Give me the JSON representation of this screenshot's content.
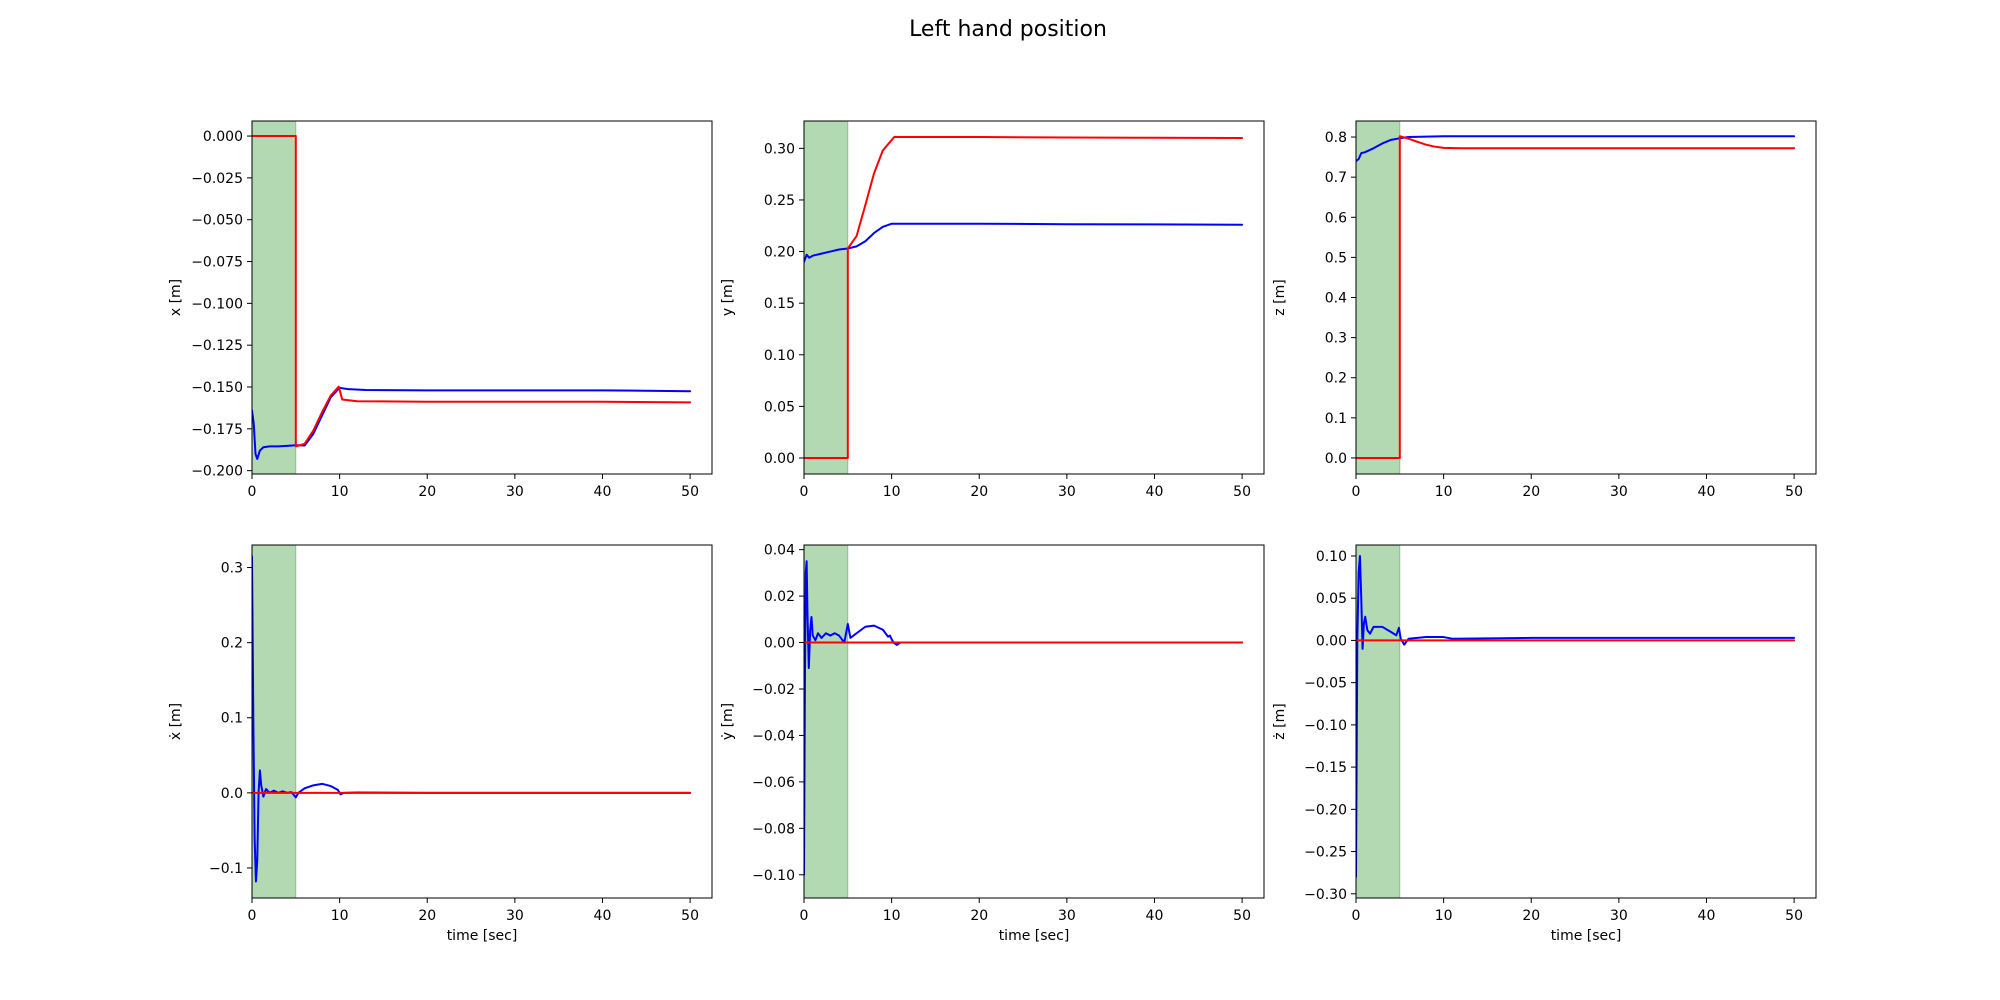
{
  "figure": {
    "title": "Left hand position",
    "colors": {
      "measured": "#0000ff",
      "reference": "#ff0000",
      "phase": "#008000"
    }
  },
  "chart_data": [
    {
      "type": "line",
      "ylabel": "x [m]",
      "xlabel": "",
      "xlim": [
        0,
        52.5
      ],
      "ylim": [
        -0.202,
        0.009
      ],
      "xticks": [
        0,
        10,
        20,
        30,
        40,
        50
      ],
      "xtick_labels": [
        "0",
        "10",
        "20",
        "30",
        "40",
        "50"
      ],
      "yticks": [
        0.0,
        -0.025,
        -0.05,
        -0.075,
        -0.1,
        -0.125,
        -0.15,
        -0.175,
        -0.2
      ],
      "ytick_labels": [
        "0.000",
        "−0.025",
        "−0.050",
        "−0.075",
        "−0.100",
        "−0.125",
        "−0.150",
        "−0.175",
        "−0.200"
      ],
      "shaded_region": {
        "x_start": 0,
        "x_end": 5,
        "color": "#008000",
        "alpha": 0.3
      },
      "series": [
        {
          "color": "#0000ff",
          "points": [
            [
              0,
              -0.164
            ],
            [
              0.2,
              -0.172
            ],
            [
              0.4,
              -0.19
            ],
            [
              0.6,
              -0.193
            ],
            [
              0.9,
              -0.188
            ],
            [
              1.3,
              -0.186
            ],
            [
              2,
              -0.1855
            ],
            [
              3,
              -0.1855
            ],
            [
              4,
              -0.1852
            ],
            [
              5,
              -0.1848
            ],
            [
              6,
              -0.185
            ],
            [
              7,
              -0.178
            ],
            [
              8,
              -0.167
            ],
            [
              9,
              -0.156
            ],
            [
              10,
              -0.1505
            ],
            [
              11,
              -0.1513
            ],
            [
              13,
              -0.1518
            ],
            [
              20,
              -0.152
            ],
            [
              30,
              -0.152
            ],
            [
              40,
              -0.152
            ],
            [
              50,
              -0.1525
            ]
          ]
        },
        {
          "color": "#ff0000",
          "points": [
            [
              0,
              0
            ],
            [
              5,
              0
            ],
            [
              5,
              -0.1855
            ],
            [
              6,
              -0.184
            ],
            [
              7,
              -0.176
            ],
            [
              8,
              -0.165
            ],
            [
              9,
              -0.155
            ],
            [
              9.9,
              -0.1498
            ],
            [
              10.3,
              -0.1575
            ],
            [
              12,
              -0.1585
            ],
            [
              20,
              -0.1588
            ],
            [
              30,
              -0.1588
            ],
            [
              40,
              -0.1588
            ],
            [
              50,
              -0.1592
            ]
          ]
        }
      ]
    },
    {
      "type": "line",
      "ylabel": "y [m]",
      "xlabel": "",
      "xlim": [
        0,
        52.5
      ],
      "ylim": [
        -0.0155,
        0.3265
      ],
      "xticks": [
        0,
        10,
        20,
        30,
        40,
        50
      ],
      "xtick_labels": [
        "0",
        "10",
        "20",
        "30",
        "40",
        "50"
      ],
      "yticks": [
        0.0,
        0.05,
        0.1,
        0.15,
        0.2,
        0.25,
        0.3
      ],
      "ytick_labels": [
        "0.00",
        "0.05",
        "0.10",
        "0.15",
        "0.20",
        "0.25",
        "0.30"
      ],
      "shaded_region": {
        "x_start": 0,
        "x_end": 5,
        "color": "#008000",
        "alpha": 0.3
      },
      "series": [
        {
          "color": "#0000ff",
          "points": [
            [
              0,
              0.19
            ],
            [
              0.3,
              0.197
            ],
            [
              0.6,
              0.194
            ],
            [
              1,
              0.196
            ],
            [
              2,
              0.198
            ],
            [
              3,
              0.2
            ],
            [
              4,
              0.202
            ],
            [
              5,
              0.203
            ],
            [
              6,
              0.205
            ],
            [
              7,
              0.21
            ],
            [
              8,
              0.218
            ],
            [
              9,
              0.224
            ],
            [
              10,
              0.227
            ],
            [
              12,
              0.227
            ],
            [
              20,
              0.227
            ],
            [
              30,
              0.2265
            ],
            [
              40,
              0.2263
            ],
            [
              50,
              0.226
            ]
          ]
        },
        {
          "color": "#ff0000",
          "points": [
            [
              0,
              0
            ],
            [
              5,
              0
            ],
            [
              5,
              0.203
            ],
            [
              6,
              0.215
            ],
            [
              7,
              0.245
            ],
            [
              8,
              0.276
            ],
            [
              9,
              0.298
            ],
            [
              10,
              0.308
            ],
            [
              10.3,
              0.311
            ],
            [
              20,
              0.311
            ],
            [
              30,
              0.3105
            ],
            [
              40,
              0.3103
            ],
            [
              50,
              0.31
            ]
          ]
        }
      ]
    },
    {
      "type": "line",
      "ylabel": "z [m]",
      "xlabel": "",
      "xlim": [
        0,
        52.5
      ],
      "ylim": [
        -0.04,
        0.84
      ],
      "xticks": [
        0,
        10,
        20,
        30,
        40,
        50
      ],
      "xtick_labels": [
        "0",
        "10",
        "20",
        "30",
        "40",
        "50"
      ],
      "yticks": [
        0.0,
        0.1,
        0.2,
        0.3,
        0.4,
        0.5,
        0.6,
        0.7,
        0.8
      ],
      "ytick_labels": [
        "0.0",
        "0.1",
        "0.2",
        "0.3",
        "0.4",
        "0.5",
        "0.6",
        "0.7",
        "0.8"
      ],
      "shaded_region": {
        "x_start": 0,
        "x_end": 5,
        "color": "#008000",
        "alpha": 0.3
      },
      "series": [
        {
          "color": "#0000ff",
          "points": [
            [
              0,
              0.74
            ],
            [
              0.3,
              0.745
            ],
            [
              0.6,
              0.76
            ],
            [
              1,
              0.762
            ],
            [
              2,
              0.772
            ],
            [
              3,
              0.784
            ],
            [
              4,
              0.793
            ],
            [
              5,
              0.797
            ],
            [
              6,
              0.8
            ],
            [
              8,
              0.801
            ],
            [
              10,
              0.802
            ],
            [
              20,
              0.802
            ],
            [
              30,
              0.802
            ],
            [
              40,
              0.802
            ],
            [
              50,
              0.802
            ]
          ]
        },
        {
          "color": "#ff0000",
          "points": [
            [
              0,
              0
            ],
            [
              5,
              0
            ],
            [
              5,
              0.802
            ],
            [
              6,
              0.796
            ],
            [
              7,
              0.788
            ],
            [
              8,
              0.781
            ],
            [
              9,
              0.776
            ],
            [
              10,
              0.773
            ],
            [
              12,
              0.772
            ],
            [
              20,
              0.772
            ],
            [
              30,
              0.772
            ],
            [
              40,
              0.772
            ],
            [
              50,
              0.772
            ]
          ]
        }
      ]
    },
    {
      "type": "line",
      "ylabel": "ẋ [m]",
      "xlabel": "time [sec]",
      "xlim": [
        0,
        52.5
      ],
      "ylim": [
        -0.14,
        0.33
      ],
      "xticks": [
        0,
        10,
        20,
        30,
        40,
        50
      ],
      "xtick_labels": [
        "0",
        "10",
        "20",
        "30",
        "40",
        "50"
      ],
      "yticks": [
        -0.1,
        0.0,
        0.1,
        0.2,
        0.3
      ],
      "ytick_labels": [
        "−0.1",
        "0.0",
        "0.1",
        "0.2",
        "0.3"
      ],
      "shaded_region": {
        "x_start": 0,
        "x_end": 5,
        "color": "#008000",
        "alpha": 0.3
      },
      "series": [
        {
          "color": "#0000ff",
          "points": [
            [
              0,
              0.315
            ],
            [
              0.15,
              0.1
            ],
            [
              0.3,
              -0.06
            ],
            [
              0.45,
              -0.118
            ],
            [
              0.6,
              -0.09
            ],
            [
              0.75,
              0.0
            ],
            [
              0.9,
              0.03
            ],
            [
              1.05,
              0.01
            ],
            [
              1.3,
              -0.005
            ],
            [
              1.6,
              0.005
            ],
            [
              2,
              0.0
            ],
            [
              2.5,
              0.003
            ],
            [
              3,
              0.0
            ],
            [
              3.5,
              0.002
            ],
            [
              4,
              0.0
            ],
            [
              4.5,
              0.001
            ],
            [
              5,
              -0.006
            ],
            [
              5.3,
              0.0
            ],
            [
              6,
              0.006
            ],
            [
              7,
              0.01
            ],
            [
              8,
              0.012
            ],
            [
              9,
              0.009
            ],
            [
              9.8,
              0.004
            ],
            [
              10.1,
              -0.002
            ],
            [
              10.5,
              0.0
            ],
            [
              12,
              0.0005
            ],
            [
              20,
              0.0
            ],
            [
              30,
              0.0
            ],
            [
              40,
              0.0
            ],
            [
              50,
              0.0
            ]
          ]
        },
        {
          "color": "#ff0000",
          "points": [
            [
              0,
              0
            ],
            [
              5,
              0
            ],
            [
              50,
              0
            ]
          ]
        }
      ]
    },
    {
      "type": "line",
      "ylabel": "ẏ [m]",
      "xlabel": "time [sec]",
      "xlim": [
        0,
        52.5
      ],
      "ylim": [
        -0.11,
        0.042
      ],
      "xticks": [
        0,
        10,
        20,
        30,
        40,
        50
      ],
      "xtick_labels": [
        "0",
        "10",
        "20",
        "30",
        "40",
        "50"
      ],
      "yticks": [
        -0.1,
        -0.08,
        -0.06,
        -0.04,
        -0.02,
        0.0,
        0.02,
        0.04
      ],
      "ytick_labels": [
        "−0.10",
        "−0.08",
        "−0.06",
        "−0.04",
        "−0.02",
        "0.00",
        "0.02",
        "0.04"
      ],
      "shaded_region": {
        "x_start": 0,
        "x_end": 5,
        "color": "#008000",
        "alpha": 0.3
      },
      "series": [
        {
          "color": "#0000ff",
          "points": [
            [
              0,
              -0.1
            ],
            [
              0.1,
              -0.02
            ],
            [
              0.2,
              0.03
            ],
            [
              0.3,
              0.035
            ],
            [
              0.4,
              0.012
            ],
            [
              0.55,
              -0.011
            ],
            [
              0.7,
              0.005
            ],
            [
              0.85,
              0.011
            ],
            [
              1,
              0.003
            ],
            [
              1.3,
              0.001
            ],
            [
              1.6,
              0.004
            ],
            [
              2,
              0.002
            ],
            [
              2.5,
              0.004
            ],
            [
              3,
              0.003
            ],
            [
              3.5,
              0.004
            ],
            [
              4,
              0.003
            ],
            [
              4.6,
              0.0
            ],
            [
              5,
              0.008
            ],
            [
              5.3,
              0.002
            ],
            [
              6,
              0.004
            ],
            [
              7,
              0.0068
            ],
            [
              8,
              0.0073
            ],
            [
              9,
              0.0055
            ],
            [
              9.6,
              0.0025
            ],
            [
              9.8,
              0.003
            ],
            [
              10.2,
              0.0
            ],
            [
              10.6,
              -0.001
            ],
            [
              11,
              0.0
            ],
            [
              20,
              0.0
            ],
            [
              30,
              0.0
            ],
            [
              40,
              0.0
            ],
            [
              50,
              0.0
            ]
          ]
        },
        {
          "color": "#ff0000",
          "points": [
            [
              0,
              0
            ],
            [
              5,
              0
            ],
            [
              50,
              0
            ]
          ]
        }
      ]
    },
    {
      "type": "line",
      "ylabel": "ż [m]",
      "xlabel": "time [sec]",
      "xlim": [
        0,
        52.5
      ],
      "ylim": [
        -0.305,
        0.113
      ],
      "xticks": [
        0,
        10,
        20,
        30,
        40,
        50
      ],
      "xtick_labels": [
        "0",
        "10",
        "20",
        "30",
        "40",
        "50"
      ],
      "yticks": [
        -0.3,
        -0.25,
        -0.2,
        -0.15,
        -0.1,
        -0.05,
        0.0,
        0.05,
        0.1
      ],
      "ytick_labels": [
        "−0.30",
        "−0.25",
        "−0.20",
        "−0.15",
        "−0.10",
        "−0.05",
        "0.00",
        "0.05",
        "0.10"
      ],
      "shaded_region": {
        "x_start": 0,
        "x_end": 5,
        "color": "#008000",
        "alpha": 0.3
      },
      "series": [
        {
          "color": "#0000ff",
          "points": [
            [
              0,
              -0.28
            ],
            [
              0.15,
              0.0
            ],
            [
              0.3,
              0.08
            ],
            [
              0.45,
              0.1
            ],
            [
              0.6,
              0.05
            ],
            [
              0.75,
              -0.01
            ],
            [
              0.9,
              0.02
            ],
            [
              1.05,
              0.028
            ],
            [
              1.3,
              0.012
            ],
            [
              1.6,
              0.008
            ],
            [
              2,
              0.016
            ],
            [
              3,
              0.016
            ],
            [
              4,
              0.01
            ],
            [
              4.6,
              0.006
            ],
            [
              4.9,
              0.015
            ],
            [
              5.1,
              0.002
            ],
            [
              5.5,
              -0.005
            ],
            [
              6,
              0.002
            ],
            [
              8,
              0.004
            ],
            [
              10,
              0.004
            ],
            [
              11,
              0.002
            ],
            [
              20,
              0.003
            ],
            [
              30,
              0.003
            ],
            [
              40,
              0.003
            ],
            [
              50,
              0.003
            ]
          ]
        },
        {
          "color": "#ff0000",
          "points": [
            [
              0,
              0
            ],
            [
              5,
              0
            ],
            [
              50,
              0
            ]
          ]
        }
      ]
    }
  ]
}
